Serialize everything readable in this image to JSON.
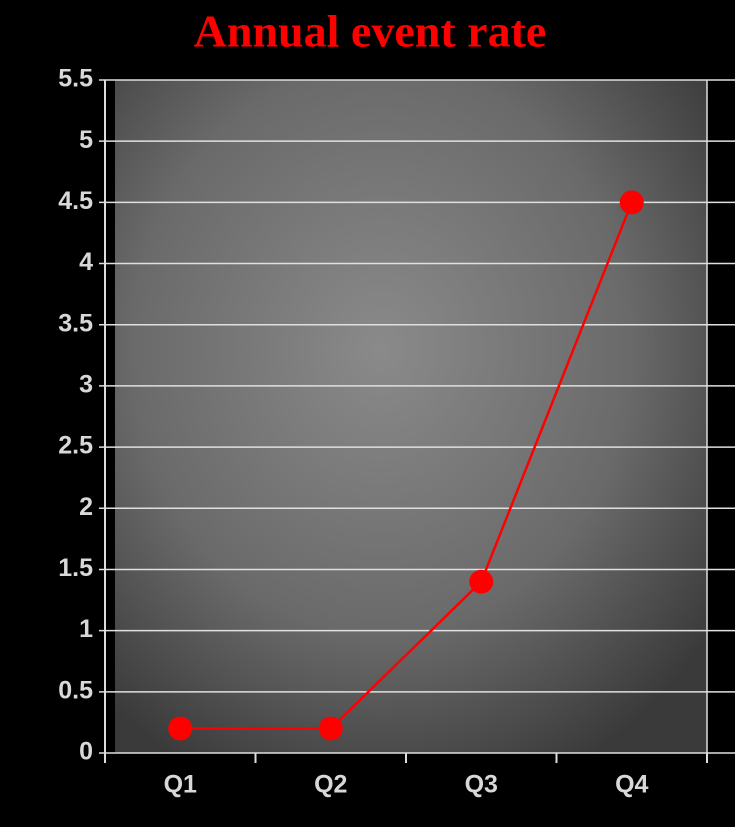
{
  "chart_data": {
    "type": "line",
    "title": "Annual event rate",
    "categories": [
      "Q1",
      "Q2",
      "Q3",
      "Q4"
    ],
    "series": [
      {
        "name": "Annual event rate",
        "color": "#ff0000",
        "values": [
          0.2,
          0.2,
          1.4,
          4.5
        ]
      }
    ],
    "ylim": [
      0,
      5.5
    ],
    "yticks": [
      0,
      0.5,
      1,
      1.5,
      2,
      2.5,
      3,
      3.5,
      4,
      4.5,
      5,
      5.5
    ],
    "grid": true
  }
}
